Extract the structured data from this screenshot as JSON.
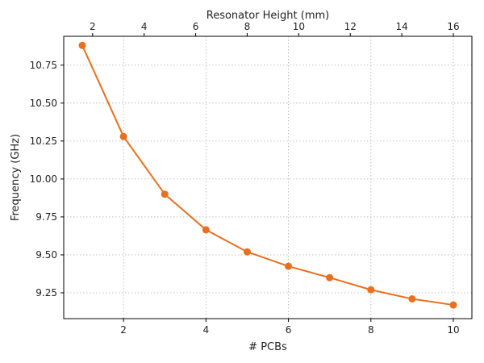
{
  "chart_data": {
    "type": "line",
    "xlabel": "# PCBs",
    "ylabel": "Frequency (GHz)",
    "top_xlabel": "Resonator Height (mm)",
    "xlim": [
      0.55,
      10.45
    ],
    "ylim": [
      9.08,
      10.94
    ],
    "x_ticks": [
      2,
      4,
      6,
      8,
      10
    ],
    "y_ticks": [
      9.25,
      9.5,
      9.75,
      10.0,
      10.25,
      10.5,
      10.75
    ],
    "y_tick_labels": [
      "9.25",
      "9.50",
      "9.75",
      "10.00",
      "10.25",
      "10.50",
      "10.75"
    ],
    "top_ticks": [
      2,
      4,
      6,
      8,
      10,
      12,
      14,
      16
    ],
    "top_axis_mm_per_pcb": 1.6,
    "grid": true,
    "series": [
      {
        "color": "#e8701f",
        "x": [
          1,
          2,
          3,
          4,
          5,
          6,
          7,
          8,
          9,
          10
        ],
        "y": [
          10.88,
          10.28,
          9.9,
          9.665,
          9.52,
          9.425,
          9.35,
          9.27,
          9.21,
          9.17
        ]
      }
    ]
  }
}
